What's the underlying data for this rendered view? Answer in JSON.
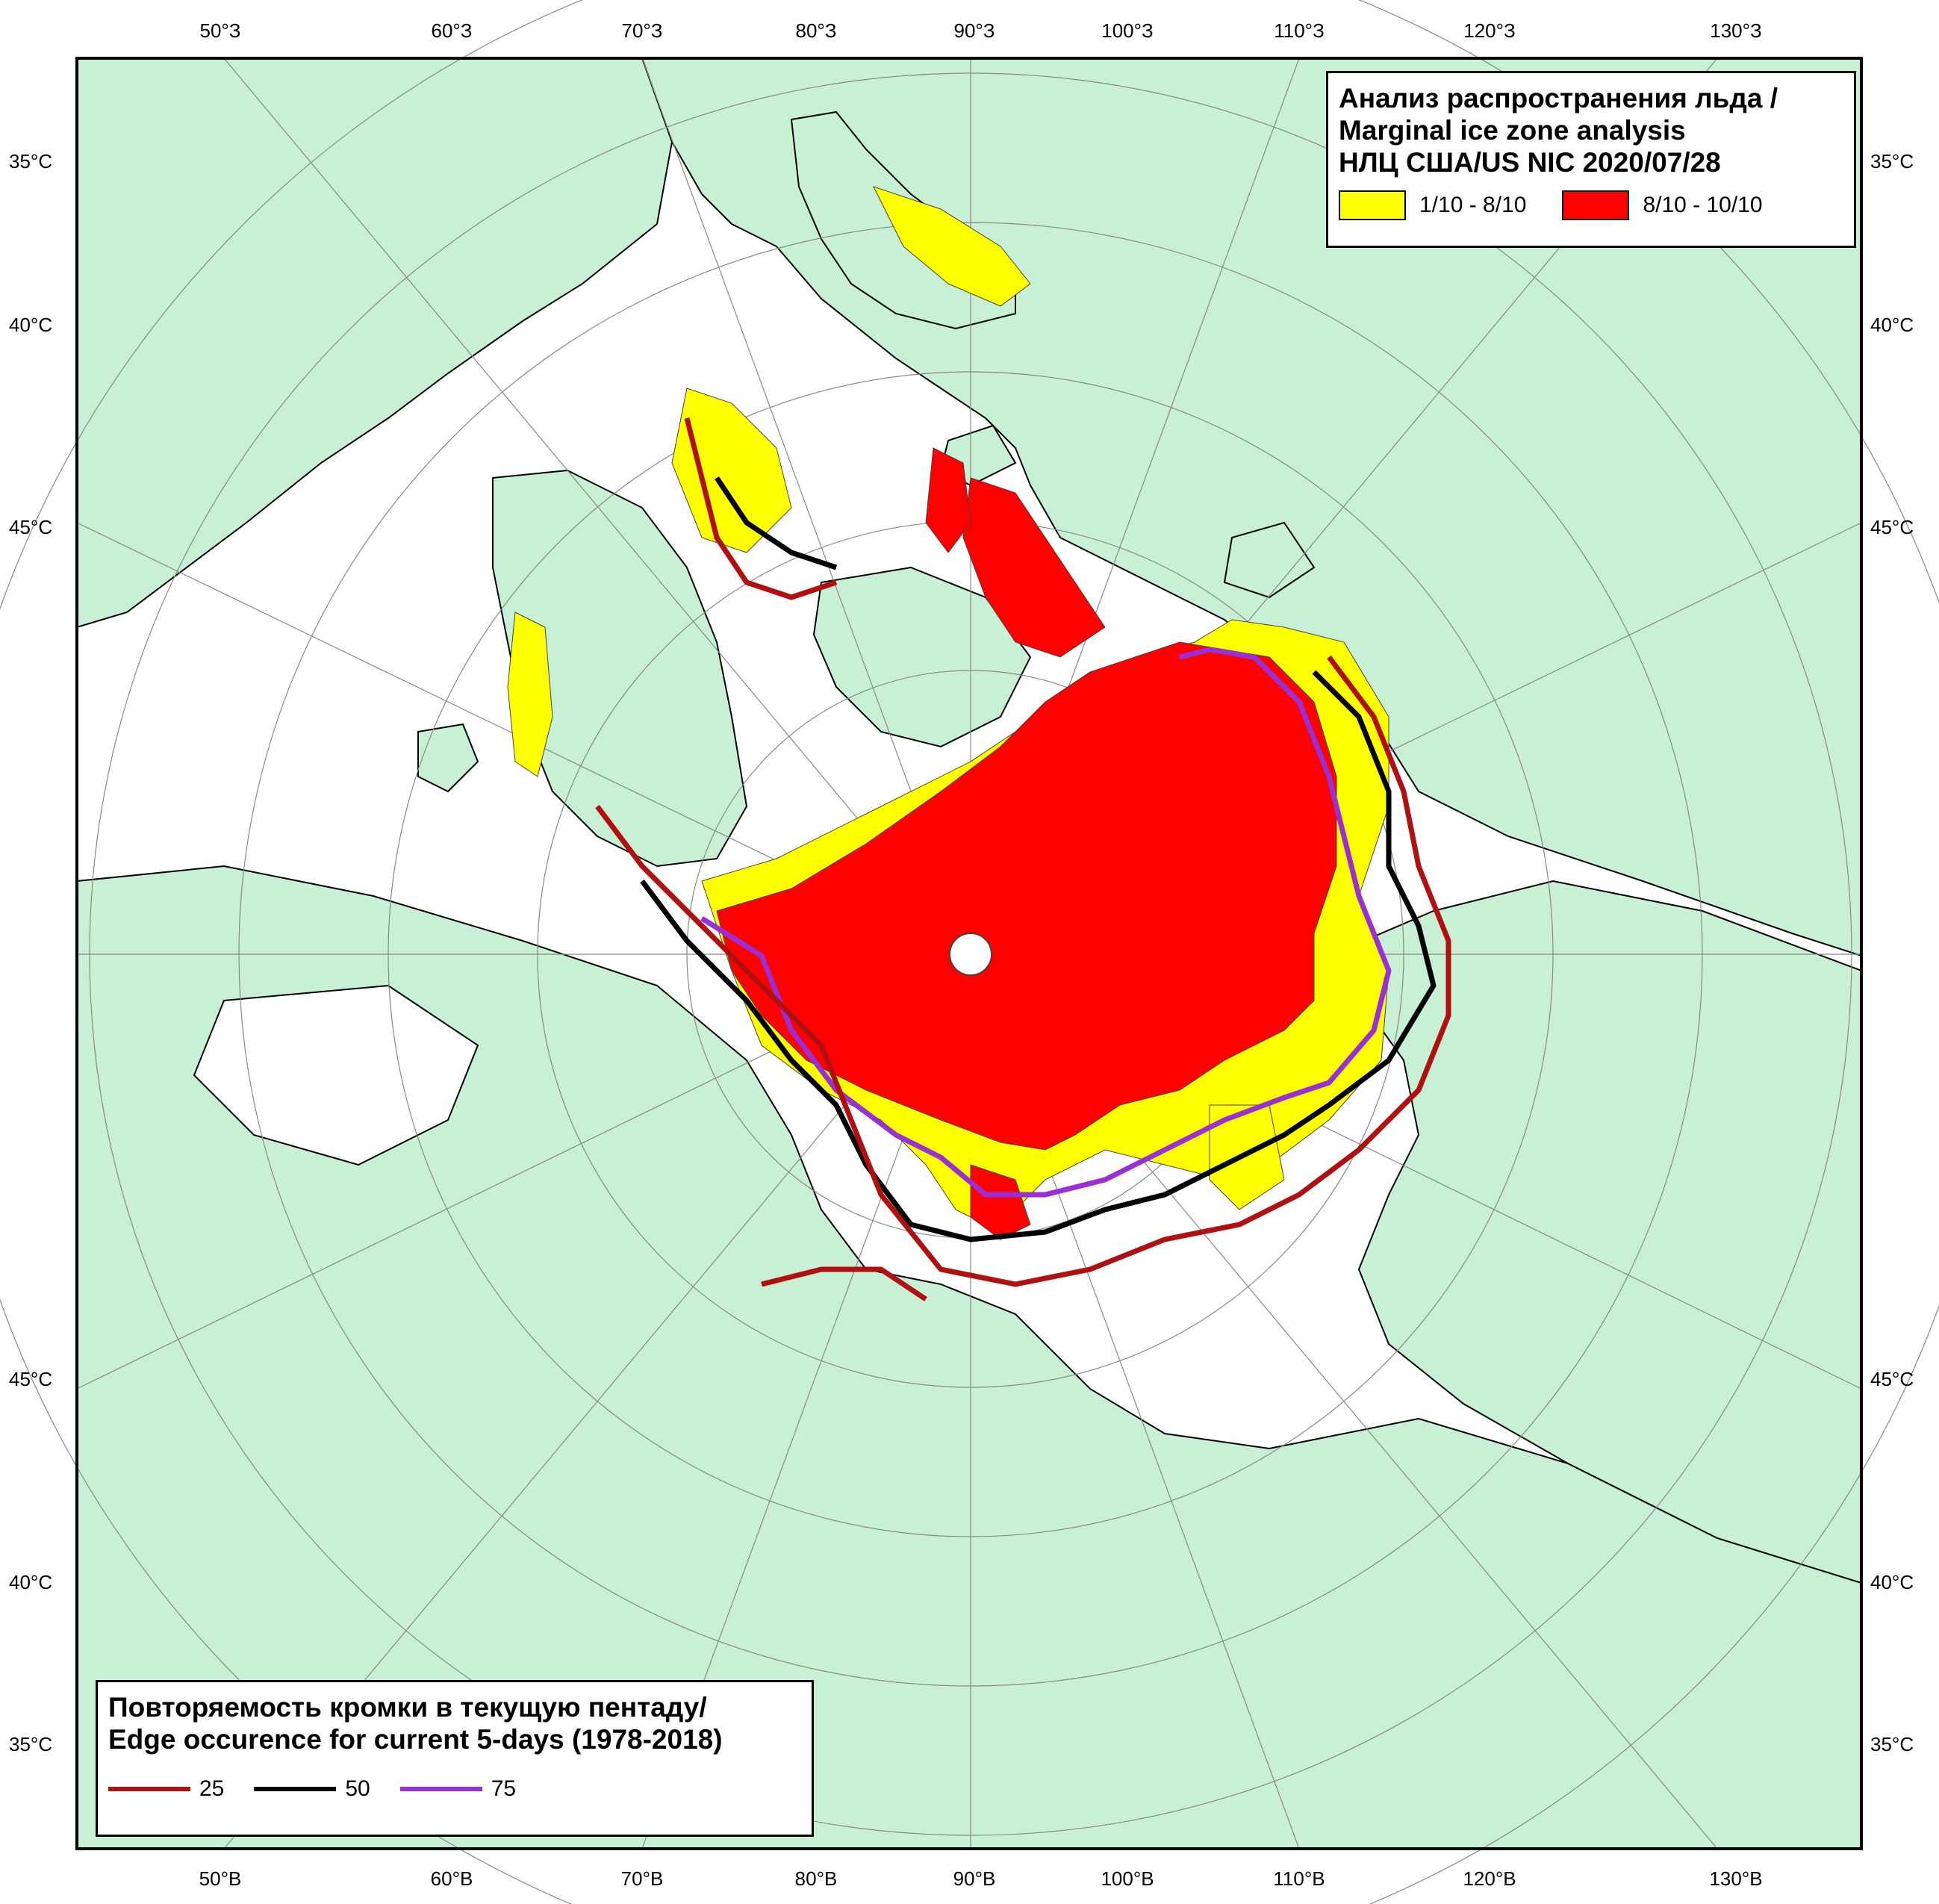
{
  "colors": {
    "land": "#c8f0d4",
    "water": "#ffffff",
    "ice_low": "#ffff00",
    "ice_high": "#ff0000",
    "edge_25": "#b01010",
    "edge_50": "#000000",
    "edge_75": "#9b2fd6",
    "graticule": "#888888"
  },
  "axis_labels": {
    "top": [
      "50°З",
      "60°З",
      "70°З",
      "80°З",
      "90°З",
      "100°З",
      "110°З",
      "120°З",
      "130°З"
    ],
    "bottom": [
      "50°В",
      "60°В",
      "70°В",
      "80°В",
      "90°В",
      "100°В",
      "110°В",
      "120°В",
      "130°В"
    ],
    "left": [
      "35°С",
      "40°С",
      "45°С",
      "45°С",
      "40°С",
      "35°С"
    ],
    "right": [
      "35°С",
      "40°С",
      "45°С",
      "45°С",
      "40°С",
      "35°С"
    ]
  },
  "legend_top": {
    "title_line1": "Анализ распространения льда /",
    "title_line2": "Marginal ice zone analysis",
    "title_line3": "НЛЦ США/US NIC 2020/07/28",
    "item1_label": "1/10 - 8/10",
    "item1_color": "#ffff00",
    "item2_label": "8/10 - 10/10",
    "item2_color": "#ff0000"
  },
  "legend_bottom": {
    "title_line1": "Повторяемость кромки в текущую пентаду/",
    "title_line2": "Edge occurence for current 5-days (1978-2018)",
    "line1_label": "25",
    "line1_color": "#b01010",
    "line2_label": "50",
    "line2_color": "#000000",
    "line3_label": "75",
    "line3_color": "#9b2fd6"
  }
}
